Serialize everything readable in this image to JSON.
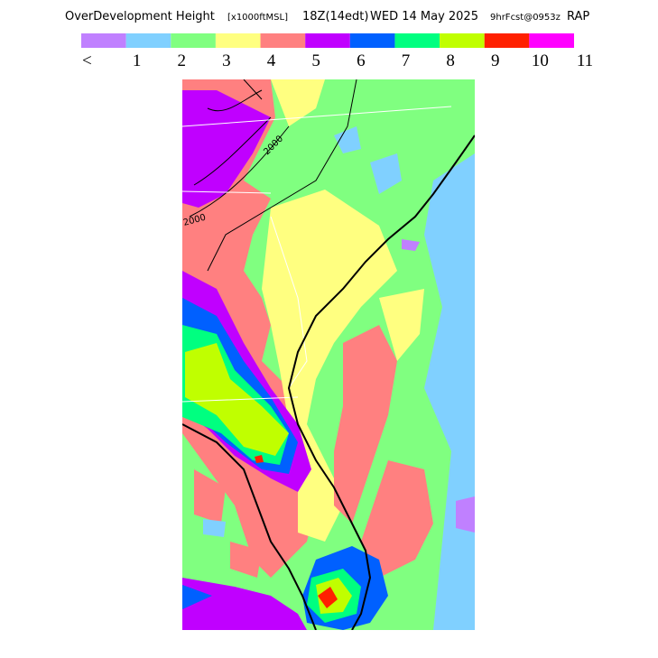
{
  "header": {
    "title": "OverDevelopment Height",
    "units": "[x1000ftMSL]",
    "valid": "18Z(14edt)",
    "date": "WED 14 May 2025",
    "forecast": "9hrFcst@0953z",
    "model": "RAP"
  },
  "legend": {
    "colors": [
      "#c080ff",
      "#80d0ff",
      "#80ff80",
      "#ffff80",
      "#ff8080",
      "#c000ff",
      "#0060ff",
      "#00ff80",
      "#c0ff00",
      "#ff2000",
      "#ff00ff"
    ],
    "labels": [
      "<",
      "1",
      "2",
      "3",
      "4",
      "5",
      "6",
      "7",
      "8",
      "9",
      "10",
      "11"
    ]
  },
  "map": {
    "contour_labels": [
      "2000",
      "2000"
    ]
  }
}
